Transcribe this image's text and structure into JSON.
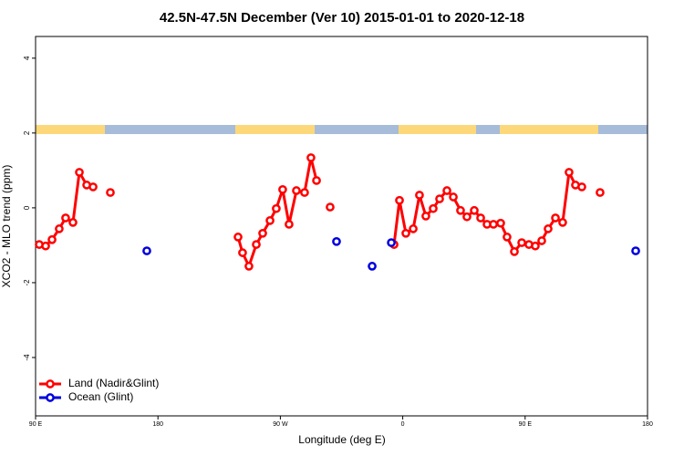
{
  "chart_data": {
    "type": "line",
    "title": "42.5N-47.5N December (Ver 10)   2015-01-01 to 2020-12-18",
    "x_label": "Longitude (deg E)",
    "y_label": "XCO2 - MLO trend (ppm)",
    "xlim": [
      90,
      540
    ],
    "xticks": [
      {
        "value": 90,
        "label": "90 E"
      },
      180,
      {
        "value": 270,
        "label": "90 W"
      },
      {
        "value": 360,
        "label": "0"
      },
      {
        "value": 450,
        "label": "90 E"
      },
      {
        "value": 540,
        "label": "180"
      }
    ],
    "ylim": [
      -5.56,
      4.58
    ],
    "yticks": [
      -4,
      -2,
      0,
      2,
      4
    ],
    "legend": "bottom-left",
    "series": [
      {
        "name": "Land (Nadir&Glint)",
        "color": "#ff0000",
        "connect": true,
        "x": [
          92.7,
          97.4,
          102.1,
          107.4,
          112.1,
          117.5,
          122.2,
          127.6,
          132.3,
          null,
          145,
          null,
          238.9,
          242.2,
          246.9,
          252.3,
          257,
          262.4,
          267,
          271.7,
          276.4,
          281.8,
          287.8,
          292.5,
          296.6,
          null,
          306.6,
          null,
          353.6,
          357.6,
          362.3,
          367.7,
          372.3,
          377,
          382.4,
          387.1,
          392.5,
          397.2,
          402.5,
          407.2,
          412.6,
          417.3,
          422,
          426.7,
          432,
          436.7,
          442.1,
          447.5,
          452.8,
          457.5,
          462.2,
          466.9,
          472.3,
          477.6,
          482.3,
          487,
          491.7,
          null,
          505.1
        ],
        "values": [
          -0.98,
          -1.02,
          -0.85,
          -0.56,
          -0.27,
          -0.39,
          0.95,
          0.61,
          0.56,
          null,
          0.41,
          null,
          -0.78,
          -1.2,
          -1.56,
          -0.98,
          -0.68,
          -0.34,
          -0.02,
          0.49,
          -0.44,
          0.46,
          0.41,
          1.34,
          0.73,
          null,
          0.02,
          null,
          -0.98,
          0.2,
          -0.68,
          -0.56,
          0.34,
          -0.22,
          -0.02,
          0.24,
          0.46,
          0.29,
          -0.07,
          -0.24,
          -0.07,
          -0.27,
          -0.44,
          -0.44,
          -0.41,
          -0.78,
          -1.17,
          -0.93,
          -0.98,
          -1.02,
          -0.88,
          -0.56,
          -0.27,
          -0.39,
          0.95,
          0.61,
          0.56,
          null,
          0.41
        ]
      },
      {
        "name": "Ocean (Glint)",
        "color": "#0000dd",
        "connect": false,
        "x": [
          171.8,
          311.3,
          337.5,
          351.6,
          531.3
        ],
        "values": [
          -1.15,
          -0.9,
          -1.56,
          -0.93,
          -1.15
        ]
      }
    ]
  }
}
